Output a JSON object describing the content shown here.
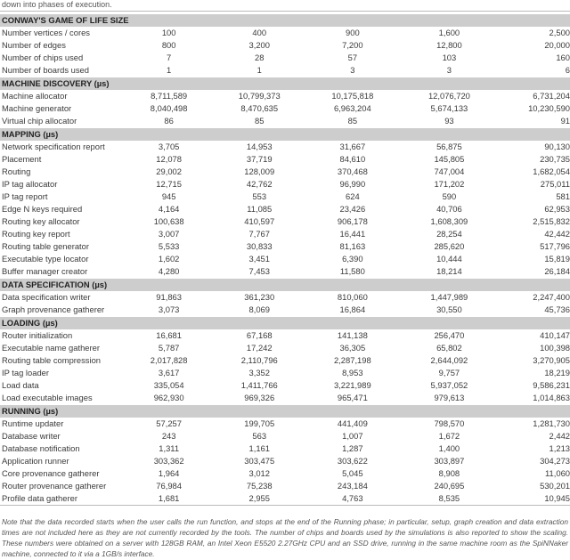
{
  "caption_tail": "down into phases of execution.",
  "sections": [
    {
      "title": "CONWAY'S GAME OF LIFE SIZE",
      "rows": [
        {
          "label": "Number vertices / cores",
          "values": [
            "100",
            "400",
            "900",
            "1,600",
            "2,500"
          ]
        },
        {
          "label": "Number of edges",
          "values": [
            "800",
            "3,200",
            "7,200",
            "12,800",
            "20,000"
          ]
        },
        {
          "label": "Number of chips used",
          "values": [
            "7",
            "28",
            "57",
            "103",
            "160"
          ]
        },
        {
          "label": "Number of boards used",
          "values": [
            "1",
            "1",
            "3",
            "3",
            "6"
          ]
        }
      ]
    },
    {
      "title": "MACHINE DISCOVERY (µs)",
      "rows": [
        {
          "label": "Machine allocator",
          "values": [
            "8,711,589",
            "10,799,373",
            "10,175,818",
            "12,076,720",
            "6,731,204"
          ]
        },
        {
          "label": "Machine generator",
          "values": [
            "8,040,498",
            "8,470,635",
            "6,963,204",
            "5,674,133",
            "10,230,590"
          ]
        },
        {
          "label": "Virtual chip allocator",
          "values": [
            "86",
            "85",
            "85",
            "93",
            "91"
          ]
        }
      ]
    },
    {
      "title": "MAPPING (µs)",
      "rows": [
        {
          "label": "Network specification report",
          "values": [
            "3,705",
            "14,953",
            "31,667",
            "56,875",
            "90,130"
          ]
        },
        {
          "label": "Placement",
          "values": [
            "12,078",
            "37,719",
            "84,610",
            "145,805",
            "230,735"
          ]
        },
        {
          "label": "Routing",
          "values": [
            "29,002",
            "128,009",
            "370,468",
            "747,004",
            "1,682,054"
          ]
        },
        {
          "label": "IP tag allocator",
          "values": [
            "12,715",
            "42,762",
            "96,990",
            "171,202",
            "275,011"
          ]
        },
        {
          "label": "IP tag report",
          "values": [
            "945",
            "553",
            "624",
            "590",
            "581"
          ]
        },
        {
          "label": "Edge N keys required",
          "values": [
            "4,164",
            "11,085",
            "23,426",
            "40,706",
            "62,953"
          ]
        },
        {
          "label": "Routing key allocator",
          "values": [
            "100,638",
            "410,597",
            "906,178",
            "1,608,309",
            "2,515,832"
          ]
        },
        {
          "label": "Routing key report",
          "values": [
            "3,007",
            "7,767",
            "16,441",
            "28,254",
            "42,442"
          ]
        },
        {
          "label": "Routing table generator",
          "values": [
            "5,533",
            "30,833",
            "81,163",
            "285,620",
            "517,796"
          ]
        },
        {
          "label": "Executable type locator",
          "values": [
            "1,602",
            "3,451",
            "6,390",
            "10,444",
            "15,819"
          ]
        },
        {
          "label": "Buffer manager creator",
          "values": [
            "4,280",
            "7,453",
            "11,580",
            "18,214",
            "26,184"
          ]
        }
      ]
    },
    {
      "title": "DATA SPECIFICATION (µs)",
      "rows": [
        {
          "label": "Data specification writer",
          "values": [
            "91,863",
            "361,230",
            "810,060",
            "1,447,989",
            "2,247,400"
          ]
        },
        {
          "label": "Graph provenance gatherer",
          "values": [
            "3,073",
            "8,069",
            "16,864",
            "30,550",
            "45,736"
          ]
        }
      ]
    },
    {
      "title": "LOADING (µs)",
      "rows": [
        {
          "label": "Router initialization",
          "values": [
            "16,681",
            "67,168",
            "141,138",
            "256,470",
            "410,147"
          ]
        },
        {
          "label": "Executable name gatherer",
          "values": [
            "5,787",
            "17,242",
            "36,305",
            "65,802",
            "100,398"
          ]
        },
        {
          "label": "Routing table compression",
          "values": [
            "2,017,828",
            "2,110,796",
            "2,287,198",
            "2,644,092",
            "3,270,905"
          ]
        },
        {
          "label": "IP tag loader",
          "values": [
            "3,617",
            "3,352",
            "8,953",
            "9,757",
            "18,219"
          ]
        },
        {
          "label": "Load data",
          "values": [
            "335,054",
            "1,411,766",
            "3,221,989",
            "5,937,052",
            "9,586,231"
          ]
        },
        {
          "label": "Load executable images",
          "values": [
            "962,930",
            "969,326",
            "965,471",
            "979,613",
            "1,014,863"
          ]
        }
      ]
    },
    {
      "title": "RUNNING (µs)",
      "rows": [
        {
          "label": "Runtime updater",
          "values": [
            "57,257",
            "199,705",
            "441,409",
            "798,570",
            "1,281,730"
          ]
        },
        {
          "label": "Database writer",
          "values": [
            "243",
            "563",
            "1,007",
            "1,672",
            "2,442"
          ]
        },
        {
          "label": "Database notification",
          "values": [
            "1,311",
            "1,161",
            "1,287",
            "1,400",
            "1,213"
          ]
        },
        {
          "label": "Application runner",
          "values": [
            "303,362",
            "303,475",
            "303,622",
            "303,897",
            "304,273"
          ]
        },
        {
          "label": "Core provenance gatherer",
          "values": [
            "1,964",
            "3,012",
            "5,045",
            "8,908",
            "11,060"
          ]
        },
        {
          "label": "Router provenance gatherer",
          "values": [
            "76,984",
            "75,238",
            "243,184",
            "240,695",
            "530,201"
          ]
        },
        {
          "label": "Profile data gatherer",
          "values": [
            "1,681",
            "2,955",
            "4,763",
            "8,535",
            "10,945"
          ]
        }
      ]
    }
  ],
  "note": "Note that the data recorded starts when the user calls the run function, and stops at the end of the Running phase; in particular, setup, graph creation and data extraction times are not included here as they are not currently recorded by the tools. The number of chips and boards used by the simulations is also reported to show the scaling. These numbers were obtained on a server with 128GB RAM, an Intel Xeon E5520 2.27GHz CPU and an SSD drive, running in the same machine room as the SpiNNaker machine, connected to it via a 1GB/s interface."
}
